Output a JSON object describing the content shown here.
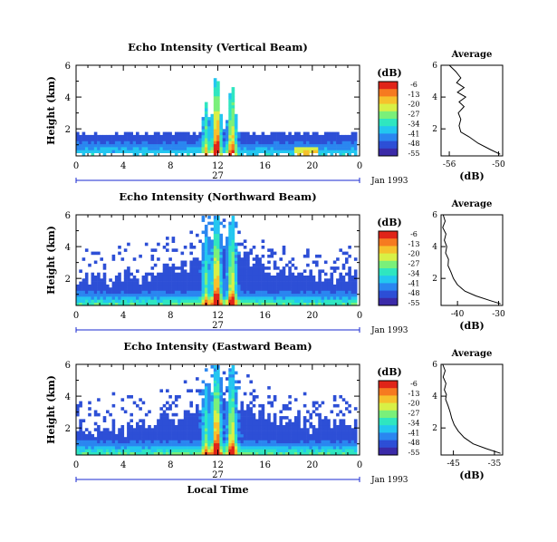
{
  "palette": [
    "#3b2aa8",
    "#2d4fd6",
    "#2a86f0",
    "#23c6f0",
    "#2fe6c0",
    "#7af07a",
    "#d8f046",
    "#f6c12c",
    "#f67a20",
    "#e02418"
  ],
  "shared": {
    "colorbar_unit": "(dB)",
    "date_label": "Jan 1993",
    "day_label": "27",
    "xlabel_bottom": "Local Time",
    "ylabel": "Height (km)",
    "profile_title": "Average",
    "profile_xlabel": "(dB)"
  },
  "chart_data": [
    {
      "type": "heatmap",
      "title": "Echo Intensity (Vertical Beam)",
      "xlabel": "",
      "ylabel": "Height (km)",
      "x_ticks": [
        "0",
        "4",
        "8",
        "12",
        "16",
        "20",
        "0"
      ],
      "xlim": [
        0,
        24
      ],
      "ylim": [
        0.3,
        6
      ],
      "y_ticks": [
        "2",
        "4",
        "6"
      ],
      "colorbar_ticks": [
        "-6",
        "-13",
        "-20",
        "-27",
        "-34",
        "-41",
        "-48",
        "-55"
      ],
      "profile": {
        "title": "Average",
        "xlabel": "(dB)",
        "x_ticks": [
          "-56",
          "-50"
        ],
        "xlim": [
          -57,
          -49.5
        ],
        "y_ticks": [
          "2",
          "4",
          "6"
        ],
        "points": [
          [
            -56,
            6.0
          ],
          [
            -55.2,
            5.6
          ],
          [
            -54.6,
            5.2
          ],
          [
            -55.1,
            4.9
          ],
          [
            -54.2,
            4.6
          ],
          [
            -55.0,
            4.3
          ],
          [
            -54.0,
            4.0
          ],
          [
            -54.8,
            3.7
          ],
          [
            -54.2,
            3.4
          ],
          [
            -54.9,
            3.0
          ],
          [
            -54.6,
            2.6
          ],
          [
            -54.8,
            2.2
          ],
          [
            -54.6,
            1.8
          ],
          [
            -53.6,
            1.5
          ],
          [
            -52.5,
            1.1
          ],
          [
            -51.0,
            0.7
          ],
          [
            -49.8,
            0.4
          ]
        ]
      }
    },
    {
      "type": "heatmap",
      "title": "Echo Intensity (Northward Beam)",
      "xlabel": "",
      "ylabel": "Height (km)",
      "x_ticks": [
        "0",
        "4",
        "8",
        "12",
        "16",
        "20",
        "0"
      ],
      "xlim": [
        0,
        24
      ],
      "ylim": [
        0.3,
        6
      ],
      "y_ticks": [
        "2",
        "4",
        "6"
      ],
      "colorbar_ticks": [
        "-6",
        "-13",
        "-20",
        "-27",
        "-34",
        "-41",
        "-48",
        "-55"
      ],
      "profile": {
        "title": "Average",
        "xlabel": "(dB)",
        "x_ticks": [
          "-40",
          "-30"
        ],
        "xlim": [
          -44,
          -29
        ],
        "y_ticks": [
          "2",
          "4",
          "6"
        ],
        "points": [
          [
            -43.5,
            6.0
          ],
          [
            -43.0,
            5.6
          ],
          [
            -43.6,
            5.2
          ],
          [
            -42.8,
            4.8
          ],
          [
            -43.2,
            4.4
          ],
          [
            -42.6,
            4.0
          ],
          [
            -42.9,
            3.6
          ],
          [
            -42.2,
            3.2
          ],
          [
            -42.3,
            2.8
          ],
          [
            -41.6,
            2.4
          ],
          [
            -41.0,
            2.0
          ],
          [
            -40.0,
            1.6
          ],
          [
            -38.2,
            1.2
          ],
          [
            -35.5,
            0.9
          ],
          [
            -32.0,
            0.6
          ],
          [
            -29.5,
            0.4
          ]
        ]
      }
    },
    {
      "type": "heatmap",
      "title": "Echo Intensity (Eastward Beam)",
      "xlabel": "Local Time",
      "ylabel": "Height (km)",
      "x_ticks": [
        "0",
        "4",
        "8",
        "12",
        "16",
        "20",
        "0"
      ],
      "xlim": [
        0,
        24
      ],
      "ylim": [
        0.3,
        6
      ],
      "y_ticks": [
        "2",
        "4",
        "6"
      ],
      "colorbar_ticks": [
        "-6",
        "-13",
        "-20",
        "-27",
        "-34",
        "-41",
        "-48",
        "-55"
      ],
      "profile": {
        "title": "Average",
        "xlabel": "(dB)",
        "x_ticks": [
          "-45",
          "-35"
        ],
        "xlim": [
          -48,
          -33
        ],
        "y_ticks": [
          "2",
          "4",
          "6"
        ],
        "points": [
          [
            -47.6,
            6.0
          ],
          [
            -47.0,
            5.6
          ],
          [
            -47.5,
            5.2
          ],
          [
            -46.8,
            4.8
          ],
          [
            -47.2,
            4.4
          ],
          [
            -46.7,
            4.1
          ],
          [
            -46.9,
            3.8
          ],
          [
            -46.3,
            3.4
          ],
          [
            -45.8,
            3.0
          ],
          [
            -45.4,
            2.6
          ],
          [
            -44.8,
            2.2
          ],
          [
            -43.8,
            1.8
          ],
          [
            -42.4,
            1.4
          ],
          [
            -40.2,
            1.0
          ],
          [
            -37.0,
            0.7
          ],
          [
            -33.5,
            0.4
          ]
        ]
      }
    }
  ]
}
